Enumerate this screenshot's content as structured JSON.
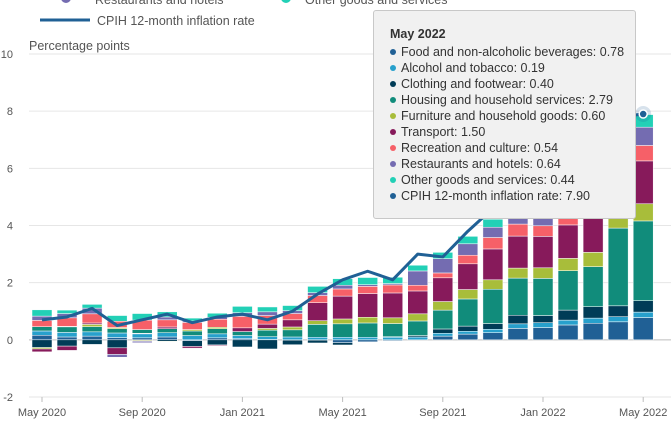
{
  "chart_data": {
    "type": "bar",
    "subtype": "stacked bar with line overlay",
    "ylabel": "Percentage points",
    "ylim": [
      -2,
      10
    ],
    "yticks": [
      -2,
      0,
      2,
      4,
      6,
      8,
      10
    ],
    "xtick_labels": [
      "May 2020",
      "Sep 2020",
      "Jan 2021",
      "May 2021",
      "Sep 2021",
      "Jan 2022",
      "May 2022"
    ],
    "categories": [
      "May 2020",
      "Jun 2020",
      "Jul 2020",
      "Aug 2020",
      "Sep 2020",
      "Oct 2020",
      "Nov 2020",
      "Dec 2020",
      "Jan 2021",
      "Feb 2021",
      "Mar 2021",
      "Apr 2021",
      "May 2021",
      "Jun 2021",
      "Jul 2021",
      "Aug 2021",
      "Sep 2021",
      "Oct 2021",
      "Nov 2021",
      "Dec 2021",
      "Jan 2022",
      "Feb 2022",
      "Mar 2022",
      "Apr 2022",
      "May 2022"
    ],
    "series": [
      {
        "name": "Food and non-alcoholic beverages",
        "color": "#206095",
        "values": [
          0.16,
          0.1,
          0.13,
          0.08,
          0.07,
          0.1,
          -0.03,
          0.07,
          0.04,
          0.01,
          -0.01,
          -0.01,
          -0.1,
          -0.07,
          -0.03,
          0.0,
          0.13,
          0.2,
          0.25,
          0.4,
          0.43,
          0.52,
          0.58,
          0.63,
          0.78
        ]
      },
      {
        "name": "Alcohol and tobacco",
        "color": "#27a0cc",
        "values": [
          0.15,
          0.16,
          0.15,
          0.16,
          0.14,
          0.15,
          0.15,
          0.14,
          0.11,
          0.1,
          0.1,
          0.09,
          0.09,
          0.09,
          0.09,
          0.1,
          0.1,
          0.1,
          0.12,
          0.16,
          0.17,
          0.17,
          0.18,
          0.18,
          0.19
        ]
      },
      {
        "name": "Clothing and footwear",
        "color": "#003c57",
        "values": [
          -0.27,
          -0.22,
          -0.16,
          -0.28,
          0.02,
          -0.05,
          -0.2,
          -0.18,
          -0.25,
          -0.32,
          -0.16,
          -0.1,
          -0.08,
          0.0,
          0.02,
          0.05,
          0.15,
          0.18,
          0.2,
          0.3,
          0.25,
          0.35,
          0.4,
          0.38,
          0.4
        ]
      },
      {
        "name": "Housing and household services",
        "color": "#118c7b",
        "values": [
          0.15,
          0.2,
          0.18,
          0.15,
          0.13,
          0.14,
          0.16,
          0.18,
          0.14,
          0.23,
          0.25,
          0.45,
          0.47,
          0.5,
          0.46,
          0.51,
          0.66,
          0.95,
          1.2,
          1.3,
          1.3,
          1.38,
          1.4,
          2.72,
          2.79
        ]
      },
      {
        "name": "Furniture and household goods",
        "color": "#a8bd3a",
        "values": [
          -0.05,
          0.01,
          0.08,
          0.04,
          -0.03,
          -0.02,
          0.05,
          0.05,
          0.0,
          0.06,
          0.1,
          0.13,
          0.17,
          0.2,
          0.2,
          0.25,
          0.3,
          0.33,
          0.33,
          0.35,
          0.37,
          0.43,
          0.5,
          0.55,
          0.6
        ]
      },
      {
        "name": "Transport",
        "color": "#871a5b",
        "values": [
          -0.1,
          -0.15,
          0.05,
          -0.23,
          -0.02,
          0.06,
          -0.06,
          -0.03,
          0.13,
          0.15,
          0.25,
          0.63,
          0.8,
          0.83,
          0.87,
          0.8,
          0.83,
          0.9,
          1.08,
          1.12,
          1.1,
          1.17,
          1.42,
          1.52,
          1.5
        ]
      },
      {
        "name": "Recreation and culture",
        "color": "#f66068",
        "values": [
          0.22,
          0.3,
          0.32,
          0.22,
          0.33,
          0.25,
          0.25,
          0.28,
          0.4,
          0.3,
          0.22,
          0.25,
          0.25,
          0.25,
          0.28,
          0.2,
          0.17,
          0.3,
          0.4,
          0.42,
          0.37,
          0.45,
          0.4,
          0.6,
          0.54
        ]
      },
      {
        "name": "Restaurants and hotels",
        "color": "#746cb1",
        "values": [
          0.15,
          0.15,
          0.2,
          -0.1,
          -0.05,
          0.1,
          0.05,
          0.07,
          0.13,
          0.13,
          0.1,
          0.1,
          0.13,
          0.06,
          0.05,
          0.5,
          0.5,
          0.4,
          0.36,
          0.4,
          0.3,
          0.4,
          0.5,
          0.6,
          0.64
        ]
      },
      {
        "name": "Other goods and services",
        "color": "#22d0b6",
        "values": [
          0.22,
          0.12,
          0.13,
          0.2,
          0.23,
          0.18,
          0.1,
          0.14,
          0.22,
          0.17,
          0.18,
          0.22,
          0.23,
          0.25,
          0.22,
          0.2,
          0.22,
          0.26,
          0.28,
          0.28,
          0.3,
          0.28,
          0.32,
          0.4,
          0.44
        ]
      },
      {
        "name": "CPIH 12-month inflation rate",
        "type": "line",
        "color": "#206095",
        "values": [
          0.7,
          0.8,
          1.1,
          0.5,
          0.7,
          0.9,
          0.6,
          0.8,
          0.9,
          0.7,
          1.0,
          1.6,
          2.1,
          2.4,
          2.1,
          3.0,
          2.9,
          3.8,
          4.6,
          4.8,
          4.9,
          5.5,
          6.2,
          7.8,
          7.9
        ]
      }
    ],
    "tooltip": {
      "title": "May 2022",
      "rows": [
        {
          "label": "Food and non-alcoholic beverages: 0.78",
          "color": "#206095"
        },
        {
          "label": "Alcohol and tobacco: 0.19",
          "color": "#27a0cc"
        },
        {
          "label": "Clothing and footwear: 0.40",
          "color": "#003c57"
        },
        {
          "label": "Housing and household services: 2.79",
          "color": "#118c7b"
        },
        {
          "label": "Furniture and household goods: 0.60",
          "color": "#a8bd3a"
        },
        {
          "label": "Transport: 1.50",
          "color": "#871a5b"
        },
        {
          "label": "Recreation and culture: 0.54",
          "color": "#f66068"
        },
        {
          "label": "Restaurants and hotels: 0.64",
          "color": "#746cb1"
        },
        {
          "label": "Other goods and services: 0.44",
          "color": "#22d0b6"
        },
        {
          "label": "CPIH 12-month inflation rate: 7.90",
          "color": "#206095"
        }
      ]
    },
    "legend_visible": [
      {
        "label": "Restaurants and hotels",
        "color": "#746cb1",
        "kind": "dot"
      },
      {
        "label": "Other goods and services",
        "color": "#22d0b6",
        "kind": "dot"
      },
      {
        "label": "CPIH 12-month inflation rate",
        "color": "#206095",
        "kind": "line"
      }
    ]
  }
}
